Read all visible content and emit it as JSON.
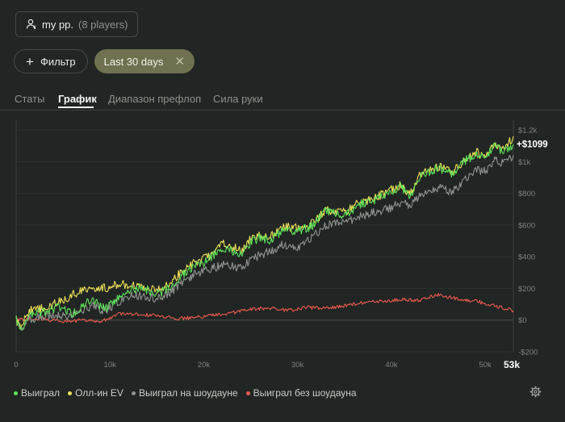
{
  "player_chip": {
    "name": "my pp.",
    "count_text": "(8 players)"
  },
  "filter_button": {
    "label": "Фильтр"
  },
  "date_filter": {
    "label": "Last 30 days"
  },
  "tabs": [
    {
      "label": "Статы",
      "active": false
    },
    {
      "label": "График",
      "active": true
    },
    {
      "label": "Диапазон префлоп",
      "active": false
    },
    {
      "label": "Сила руки",
      "active": false
    }
  ],
  "colors": {
    "won": "#5ee05b",
    "allin_ev": "#efe25a",
    "showdown": "#8f9390",
    "non_showdown": "#e85a4f"
  },
  "chart_data": {
    "type": "line",
    "xlim": [
      0,
      53000
    ],
    "ylim": [
      -200,
      1200
    ],
    "x_ticks": [
      "0",
      "10k",
      "20k",
      "30k",
      "40k",
      "50k"
    ],
    "x_end_label": "53k",
    "y_ticks": [
      "$1.2k",
      "$1k",
      "$800",
      "$600",
      "$400",
      "$200",
      "$0",
      "-$200"
    ],
    "end_value_label": "+$1099",
    "series": [
      {
        "name": "Выиграл",
        "key": "won",
        "x": [
          0,
          500,
          1500,
          3000,
          4500,
          6000,
          8000,
          9500,
          11000,
          12500,
          14000,
          15000,
          16500,
          17500,
          19000,
          20500,
          22000,
          24000,
          25000,
          26000,
          27000,
          28500,
          30000,
          31500,
          33000,
          35000,
          36500,
          38000,
          39500,
          41000,
          42000,
          43000,
          45000,
          46500,
          48000,
          49000,
          50000,
          51000,
          52000,
          53000
        ],
        "y": [
          0,
          -60,
          30,
          50,
          80,
          40,
          130,
          70,
          150,
          200,
          190,
          160,
          210,
          280,
          340,
          380,
          460,
          420,
          490,
          520,
          500,
          570,
          560,
          590,
          690,
          660,
          730,
          750,
          800,
          840,
          780,
          900,
          960,
          920,
          1010,
          1050,
          1020,
          1100,
          1060,
          1110
        ]
      },
      {
        "name": "Олл-ин EV",
        "key": "allin_ev",
        "x": [
          0,
          500,
          1500,
          3000,
          4500,
          6000,
          8000,
          9500,
          11000,
          12500,
          14000,
          15000,
          16500,
          17500,
          19000,
          20500,
          22000,
          24000,
          25000,
          26000,
          27000,
          28500,
          30000,
          31500,
          33000,
          35000,
          36500,
          38000,
          39500,
          41000,
          42000,
          43000,
          45000,
          46500,
          48000,
          49000,
          50000,
          51000,
          52000,
          53000
        ],
        "y": [
          0,
          -30,
          60,
          80,
          110,
          160,
          210,
          200,
          230,
          220,
          210,
          190,
          230,
          300,
          360,
          400,
          480,
          440,
          510,
          540,
          520,
          590,
          580,
          610,
          690,
          680,
          740,
          760,
          810,
          850,
          790,
          910,
          970,
          930,
          1020,
          1060,
          1030,
          1120,
          1070,
          1160
        ]
      },
      {
        "name": "Выиграл на шоудауне",
        "key": "showdown",
        "x": [
          0,
          500,
          1500,
          3000,
          4500,
          6000,
          8000,
          9500,
          11000,
          12500,
          14000,
          15000,
          16500,
          17500,
          19000,
          20500,
          22000,
          24000,
          25000,
          26000,
          27000,
          28500,
          30000,
          31500,
          33000,
          35000,
          36500,
          38000,
          39500,
          41000,
          42000,
          43000,
          45000,
          46500,
          48000,
          49000,
          50000,
          51000,
          52000,
          53000
        ],
        "y": [
          0,
          -50,
          10,
          20,
          30,
          30,
          90,
          60,
          120,
          160,
          150,
          130,
          180,
          230,
          290,
          320,
          350,
          330,
          380,
          410,
          430,
          480,
          460,
          520,
          600,
          620,
          650,
          680,
          700,
          740,
          720,
          790,
          840,
          810,
          890,
          950,
          940,
          1010,
          990,
          1040
        ]
      },
      {
        "name": "Выиграл без шоудауна",
        "key": "non_showdown",
        "x": [
          0,
          1500,
          3000,
          5000,
          7000,
          9000,
          11000,
          13000,
          15000,
          17000,
          19000,
          21000,
          23000,
          25000,
          27000,
          29000,
          31000,
          33000,
          35000,
          37000,
          39000,
          41000,
          43000,
          45000,
          47000,
          49000,
          51000,
          53000
        ],
        "y": [
          0,
          10,
          5,
          -10,
          0,
          -10,
          40,
          35,
          30,
          10,
          15,
          30,
          45,
          70,
          75,
          60,
          80,
          75,
          90,
          110,
          120,
          130,
          125,
          160,
          135,
          120,
          90,
          60
        ]
      }
    ]
  },
  "settings": {
    "icon": "gear-icon"
  }
}
